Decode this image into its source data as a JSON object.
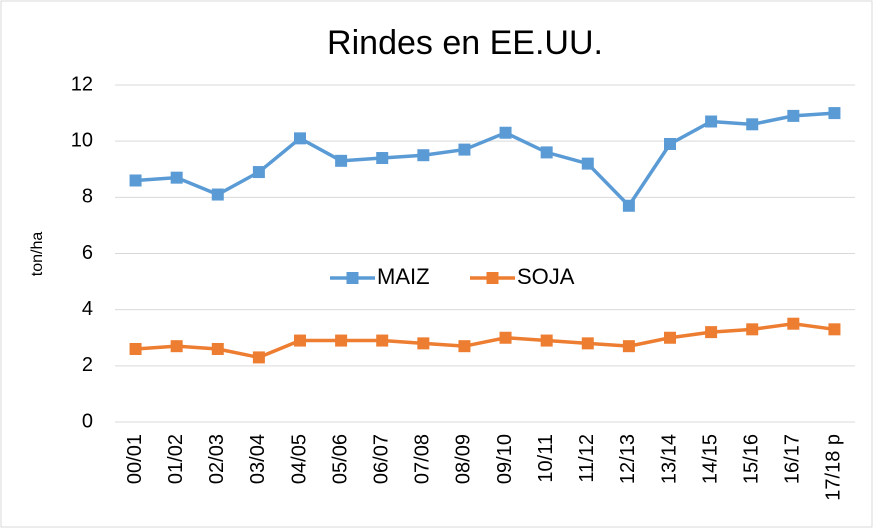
{
  "chart_data": {
    "type": "line",
    "title": "Rindes en EE.UU.",
    "y_label": "ton/ha",
    "categories": [
      "00/01",
      "01/02",
      "02/03",
      "03/04",
      "04/05",
      "05/06",
      "06/07",
      "07/08",
      "08/09",
      "09/10",
      "10/11",
      "11/12",
      "12/13",
      "13/14",
      "14/15",
      "15/16",
      "16/17",
      "17/18 p"
    ],
    "series": [
      {
        "name": "MAIZ",
        "color": "#5b9bd5",
        "values": [
          8.6,
          8.7,
          8.1,
          8.9,
          10.1,
          9.3,
          9.4,
          9.5,
          9.7,
          10.3,
          9.6,
          9.2,
          7.7,
          9.9,
          10.7,
          10.6,
          10.9,
          11.0
        ]
      },
      {
        "name": "SOJA",
        "color": "#ed7d31",
        "values": [
          2.6,
          2.7,
          2.6,
          2.3,
          2.9,
          2.9,
          2.9,
          2.8,
          2.7,
          3.0,
          2.9,
          2.8,
          2.7,
          3.0,
          3.2,
          3.3,
          3.5,
          3.3
        ]
      }
    ],
    "ylim": [
      0,
      12
    ],
    "yticks": [
      0,
      2,
      4,
      6,
      8,
      10,
      12
    ],
    "grid": true,
    "legend": "center"
  }
}
